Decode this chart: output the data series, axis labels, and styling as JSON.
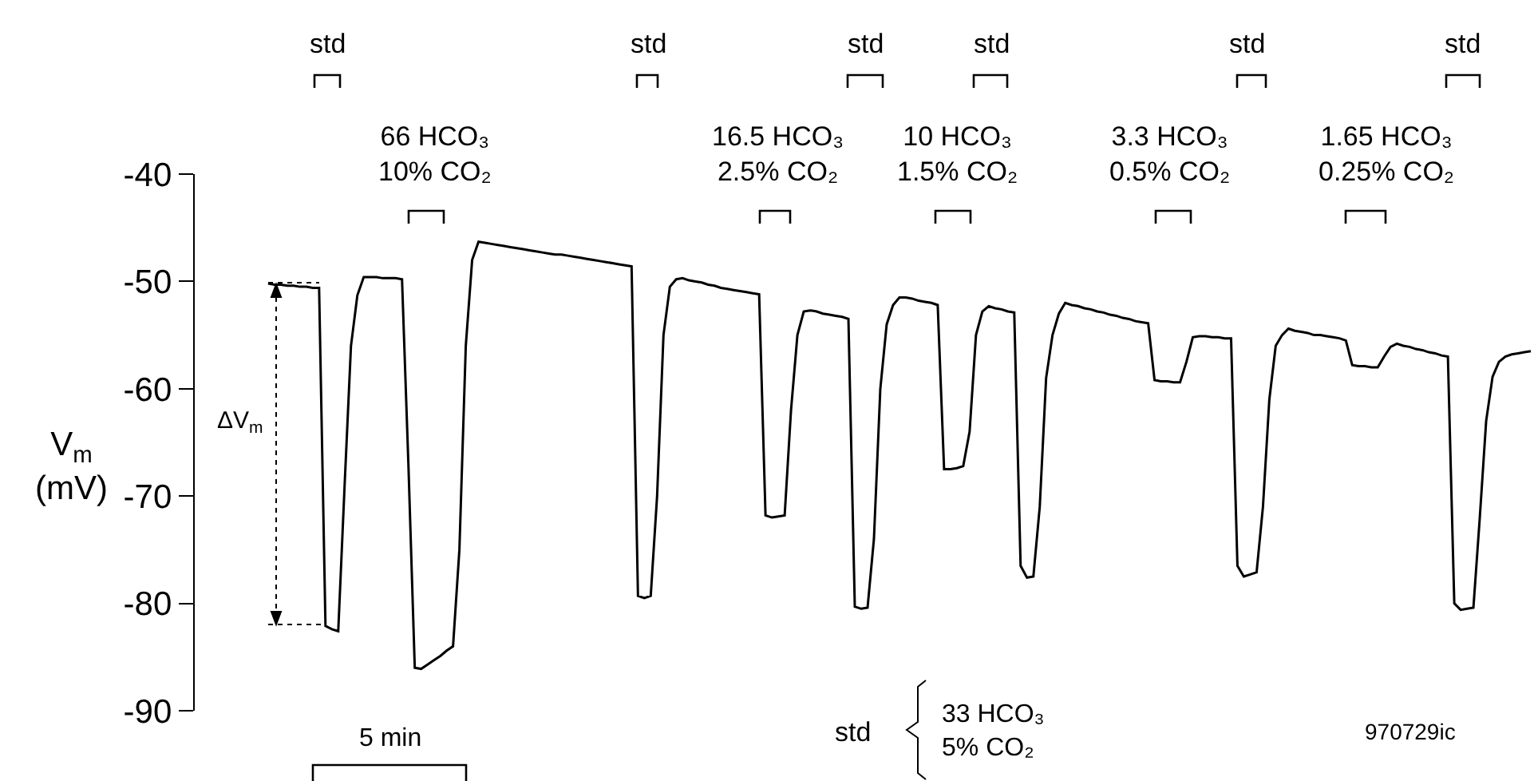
{
  "chart_data": {
    "type": "line",
    "ylabel": "V$_{m}$\n(mV)",
    "categories": [
      null,
      null,
      null,
      null,
      null,
      null,
      null,
      null,
      null,
      null,
      null,
      null,
      null,
      null,
      null,
      null,
      null,
      null,
      null,
      null,
      null,
      null,
      null,
      null,
      null,
      null,
      null,
      null,
      null,
      null,
      null,
      null,
      null,
      null,
      null,
      null,
      null,
      null,
      null,
      null,
      null,
      null,
      null,
      null,
      null,
      null,
      null,
      null,
      null,
      null,
      null,
      null,
      null,
      null,
      null,
      null,
      null,
      null,
      null,
      null,
      null,
      null,
      null,
      null,
      null,
      null,
      null,
      null,
      null,
      null,
      null,
      null,
      null,
      null,
      null,
      null,
      null,
      null,
      null,
      null,
      null,
      null,
      null,
      null,
      null,
      null,
      null,
      null,
      null,
      null,
      null,
      null,
      null,
      null,
      null,
      null,
      null,
      null,
      null,
      null,
      null,
      null,
      null,
      null,
      null,
      null,
      null,
      null,
      null,
      null,
      null,
      null,
      null,
      null,
      null,
      null,
      null,
      null,
      null,
      null,
      null,
      null,
      null,
      null,
      null,
      null,
      null,
      null,
      null,
      null,
      null,
      null,
      null,
      null,
      null,
      null,
      null,
      null,
      null,
      null,
      null,
      null,
      null,
      null,
      null,
      null,
      null,
      null,
      null,
      null,
      null,
      null,
      null,
      null,
      null,
      null,
      null,
      null,
      null,
      null,
      null,
      null,
      null,
      null,
      null,
      null,
      null,
      null,
      null,
      null,
      null,
      null,
      null,
      null,
      null,
      null,
      null,
      null,
      null,
      null,
      null,
      null,
      null,
      null,
      null,
      null,
      null,
      null,
      null,
      null,
      null,
      null,
      null,
      null,
      null,
      null,
      null,
      null,
      null
    ],
    "series": [
      {
        "color": "#000000",
        "values": [
          -50.2,
          -50.3,
          -50.3,
          -50.4,
          -50.4,
          -50.5,
          -50.5,
          -50.6,
          -50.6,
          -82.1,
          -82.4,
          -82.6,
          -69,
          -56,
          -51.3,
          -49.6,
          -49.6,
          -49.6,
          -49.7,
          -49.7,
          -49.7,
          -49.8,
          -67,
          -86,
          -86.1,
          -85.7,
          -85.3,
          -84.9,
          -84.4,
          -84,
          -75,
          -56,
          -48,
          -46.3,
          -46.4,
          -46.5,
          -46.6,
          -46.7,
          -46.8,
          -46.9,
          -47,
          -47.1,
          -47.2,
          -47.3,
          -47.4,
          -47.5,
          -47.5,
          -47.6,
          -47.7,
          -47.8,
          -47.9,
          -48,
          -48.1,
          -48.2,
          -48.3,
          -48.4,
          -48.5,
          -48.6,
          -79.3,
          -79.5,
          -79.3,
          -70,
          -55,
          -50.5,
          -49.8,
          -49.7,
          -49.9,
          -50,
          -50.1,
          -50.3,
          -50.4,
          -50.6,
          -50.7,
          -50.8,
          -50.9,
          -51,
          -51.1,
          -51.2,
          -71.8,
          -72,
          -71.9,
          -71.8,
          -62,
          -55,
          -52.8,
          -52.7,
          -52.8,
          -53,
          -53.1,
          -53.2,
          -53.3,
          -53.5,
          -80.3,
          -80.5,
          -80.4,
          -74,
          -60,
          -54,
          -52.2,
          -51.5,
          -51.5,
          -51.6,
          -51.8,
          -51.9,
          -52,
          -52.2,
          -67.5,
          -67.5,
          -67.4,
          -67.2,
          -64,
          -55,
          -52.8,
          -52.3,
          -52.5,
          -52.6,
          -52.8,
          -52.9,
          -76.5,
          -77.6,
          -77.5,
          -71,
          -59,
          -55,
          -53,
          -52,
          -52.2,
          -52.3,
          -52.5,
          -52.6,
          -52.8,
          -52.9,
          -53.1,
          -53.2,
          -53.4,
          -53.5,
          -53.7,
          -53.8,
          -53.9,
          -59.2,
          -59.3,
          -59.3,
          -59.4,
          -59.4,
          -57.5,
          -55.2,
          -55.1,
          -55.1,
          -55.2,
          -55.2,
          -55.3,
          -55.3,
          -76.5,
          -77.5,
          -77.3,
          -77.1,
          -71,
          -61,
          -56,
          -55,
          -54.4,
          -54.6,
          -54.7,
          -54.8,
          -55,
          -55,
          -55.1,
          -55.2,
          -55.3,
          -55.5,
          -57.8,
          -57.9,
          -57.9,
          -58,
          -58,
          -57,
          -56.1,
          -55.8,
          -56,
          -56.1,
          -56.3,
          -56.4,
          -56.6,
          -56.7,
          -56.9,
          -57,
          -80,
          -80.6,
          -80.5,
          -80.4,
          -72,
          -63,
          -58.9,
          -57.5,
          -57,
          -56.8,
          -56.7,
          -56.6,
          -56.5
        ]
      }
    ],
    "ylim": [
      -90,
      -40
    ],
    "yticks": [
      -90,
      -80,
      -70,
      -60,
      -50,
      -40
    ],
    "tick_labels": "y",
    "grid": false,
    "marker": "none",
    "line_style": "solid",
    "annotations": [
      "std",
      "std",
      "std",
      "std",
      "std",
      "std",
      "66 HCO₃\n10% CO₂",
      "16.5 HCO₃\n2.5% CO₂",
      "10 HCO₃\n1.5% CO₂",
      "3.3 HCO₃\n0.5% CO₂",
      "1.65 HCO₃\n0.25% CO₂",
      "ΔV$_{m}$",
      "5 min",
      "std",
      "33 HCO₃\n5% CO₂",
      "970729ic"
    ]
  }
}
